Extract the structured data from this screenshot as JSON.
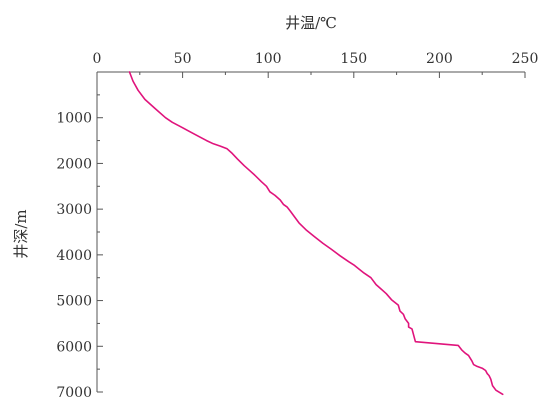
{
  "chart_data": {
    "type": "line",
    "title": "",
    "xlabel": "井温/℃",
    "ylabel": "井深/m",
    "x_axis_position": "top",
    "y_axis_inverted": true,
    "xlim": [
      0,
      250
    ],
    "ylim": [
      0,
      7000
    ],
    "x_ticks": [
      0,
      50,
      100,
      150,
      200,
      250
    ],
    "x_tick_labels": [
      "0",
      "50",
      "100",
      "150",
      "200",
      "250"
    ],
    "y_ticks": [
      1000,
      2000,
      3000,
      4000,
      5000,
      6000,
      7000
    ],
    "y_tick_labels": [
      "1000",
      "2000",
      "3000",
      "4000",
      "5000",
      "6000",
      "7000"
    ],
    "grid": false,
    "series": [
      {
        "color": "#e0147c",
        "x": [
          19,
          21,
          24,
          28,
          34,
          40,
          44,
          48,
          54,
          60,
          64,
          68,
          72,
          76,
          79,
          82,
          86,
          89,
          92,
          96,
          99,
          101,
          104,
          107,
          109,
          111,
          113,
          115,
          118,
          122,
          127,
          132,
          137,
          142,
          147,
          150,
          153,
          156,
          160,
          163,
          166,
          169,
          172,
          176,
          177,
          179,
          180,
          182,
          182,
          184,
          186,
          211,
          213,
          215,
          217,
          219,
          220,
          222,
          225,
          227,
          228,
          229,
          230,
          231,
          233,
          237
        ],
        "y": [
          0,
          200,
          400,
          600,
          800,
          1000,
          1100,
          1180,
          1300,
          1420,
          1500,
          1570,
          1620,
          1680,
          1780,
          1900,
          2050,
          2150,
          2250,
          2400,
          2500,
          2620,
          2700,
          2800,
          2900,
          2950,
          3050,
          3150,
          3300,
          3450,
          3600,
          3750,
          3880,
          4020,
          4150,
          4220,
          4310,
          4400,
          4500,
          4650,
          4750,
          4850,
          4980,
          5100,
          5230,
          5300,
          5400,
          5500,
          5580,
          5620,
          5900,
          5980,
          6080,
          6150,
          6200,
          6320,
          6400,
          6440,
          6480,
          6530,
          6600,
          6640,
          6720,
          6860,
          6960,
          7050
        ]
      }
    ]
  }
}
